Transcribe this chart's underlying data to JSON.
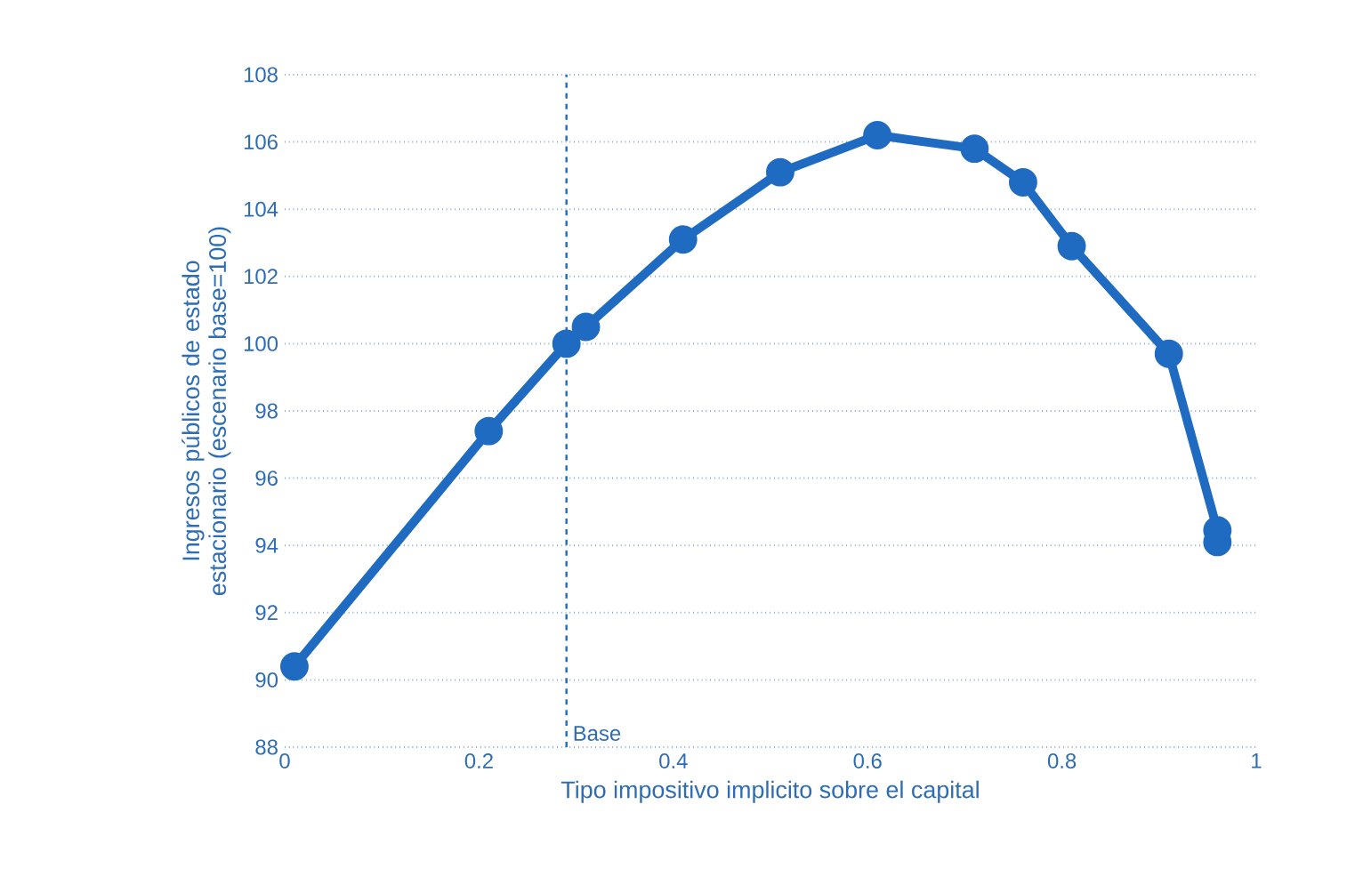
{
  "chart_data": {
    "type": "line",
    "xlabel": "Tipo impositivo implicito sobre el capital",
    "ylabel": "Ingresos públicos de estado estacionario (escenario base=100)",
    "series": [
      {
        "color": "#1f6bc1",
        "x": [
          0.01,
          0.21,
          0.29,
          0.31,
          0.41,
          0.51,
          0.61,
          0.71,
          0.76,
          0.81,
          0.91,
          0.96,
          0.96
        ],
        "values": [
          90.4,
          97.4,
          100.0,
          100.5,
          103.1,
          105.1,
          106.2,
          105.8,
          104.8,
          102.9,
          99.7,
          94.45,
          94.1
        ]
      }
    ],
    "xlim": [
      0,
      1
    ],
    "xticks": [
      0,
      0.2,
      0.4,
      0.6,
      0.8,
      1
    ],
    "ylim": [
      88,
      108
    ],
    "yticks": [
      88,
      90,
      92,
      94,
      96,
      98,
      100,
      102,
      104,
      106,
      108
    ],
    "grid": "y",
    "marker": "circle",
    "line_style": "solid",
    "ref_lines": [
      {
        "axis": "x",
        "value": 0.29,
        "label": "Base",
        "color": "#1f6bc1",
        "line_style": "dashed"
      }
    ]
  }
}
